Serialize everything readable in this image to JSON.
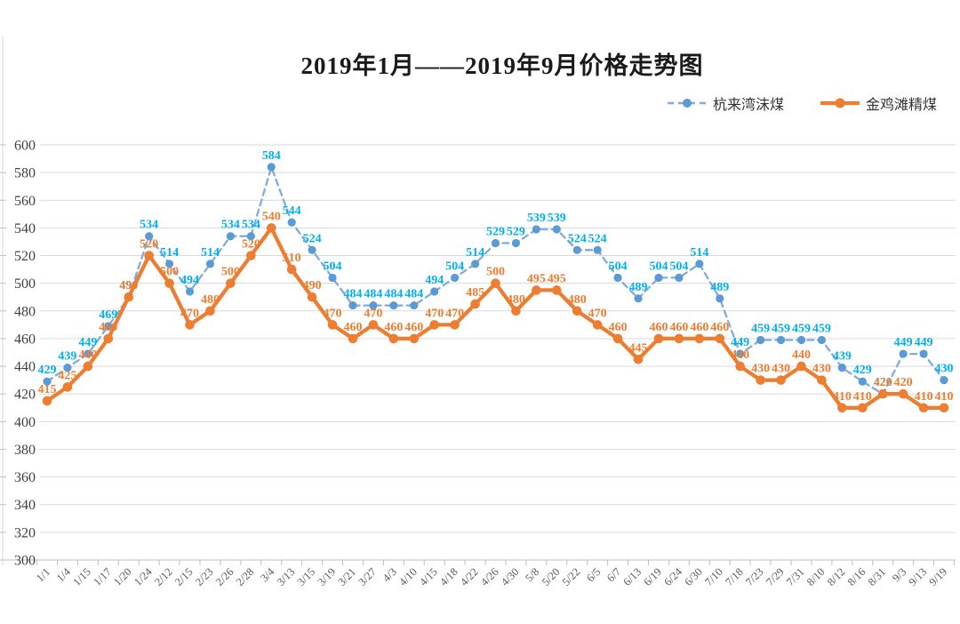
{
  "chart_data": {
    "type": "line",
    "title": "2019年1月——2019年9月价格走势图",
    "xlabel": "",
    "ylabel": "",
    "ylim": [
      300,
      600
    ],
    "y_tick_step": 20,
    "y_ticks": [
      300,
      320,
      340,
      360,
      380,
      400,
      420,
      440,
      460,
      480,
      500,
      520,
      540,
      560,
      580,
      600
    ],
    "grid": true,
    "legend_position": "top-right",
    "categories": [
      "1/1",
      "1/4",
      "1/15",
      "1/17",
      "1/20",
      "1/24",
      "2/12",
      "2/15",
      "2/23",
      "2/26",
      "2/28",
      "3/4",
      "3/13",
      "3/15",
      "3/19",
      "3/21",
      "3/27",
      "4/3",
      "4/10",
      "4/15",
      "4/18",
      "4/22",
      "4/26",
      "4/30",
      "5/8",
      "5/20",
      "5/22",
      "6/5",
      "6/7",
      "6/13",
      "6/19",
      "6/24",
      "6/30",
      "7/10",
      "7/18",
      "7/23",
      "7/29",
      "7/31",
      "8/10",
      "8/12",
      "8/16",
      "8/31",
      "9/3",
      "9/13",
      "9/19"
    ],
    "series": [
      {
        "name": "杭来湾沫煤",
        "line_style": "dashed",
        "marker_color": "#5B9BD5",
        "line_color": "#7FABDF",
        "label_color": "#00B0F0",
        "values": [
          429,
          439,
          449,
          469,
          490,
          534,
          514,
          494,
          514,
          534,
          534,
          584,
          544,
          524,
          504,
          484,
          484,
          484,
          484,
          494,
          504,
          514,
          529,
          529,
          539,
          539,
          524,
          524,
          504,
          489,
          504,
          504,
          514,
          489,
          449,
          459,
          459,
          459,
          459,
          439,
          429,
          420,
          449,
          449,
          430
        ]
      },
      {
        "name": "金鸡滩精煤",
        "line_style": "solid",
        "marker_color": "#ED7D31",
        "line_color": "#ED7D31",
        "label_color": "#ED7D31",
        "values": [
          415,
          425,
          440,
          460,
          490,
          520,
          500,
          470,
          480,
          500,
          520,
          540,
          510,
          490,
          470,
          460,
          470,
          460,
          460,
          470,
          470,
          485,
          500,
          480,
          495,
          495,
          480,
          470,
          460,
          445,
          460,
          460,
          460,
          460,
          440,
          430,
          430,
          440,
          430,
          410,
          410,
          420,
          420,
          410,
          410
        ]
      }
    ],
    "colors": {
      "gridline": "#D9D9D9",
      "axis_line": "#BFBFBF",
      "y_tick_label": "#404040",
      "x_tick_label": "#595959"
    }
  }
}
